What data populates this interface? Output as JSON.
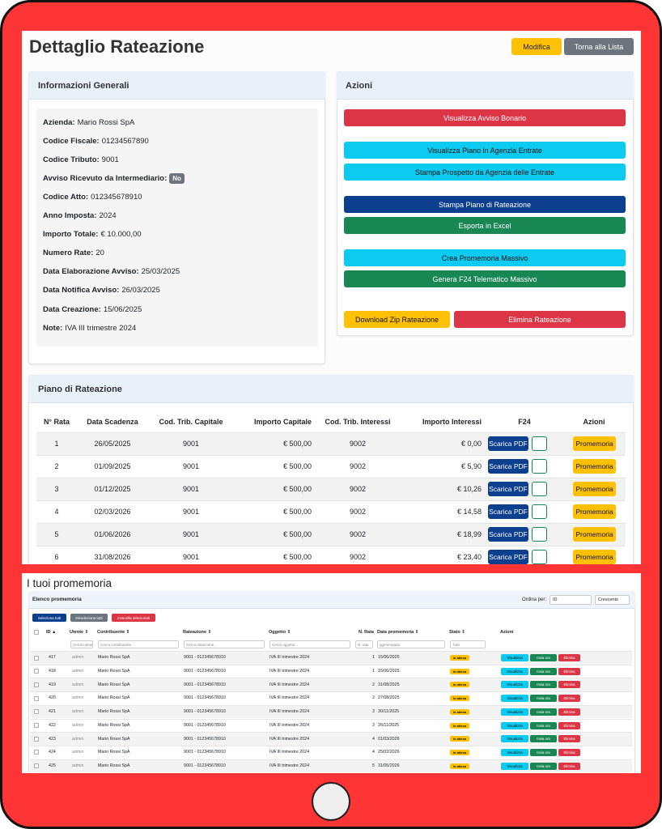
{
  "header": {
    "title": "Dettaglio Rateazione",
    "edit_button": "Modifica",
    "back_button": "Torna alla Lista"
  },
  "info": {
    "title": "Informazioni Generali",
    "fields": [
      {
        "label": "Azienda:",
        "value": "Mario Rossi SpA"
      },
      {
        "label": "Codice Fiscale:",
        "value": "01234567890"
      },
      {
        "label": "Codice Tributo:",
        "value": "9001"
      },
      {
        "label": "Avviso Ricevuto da Intermediario:",
        "badge": "No"
      },
      {
        "label": "Codice Atto:",
        "value": "012345678910"
      },
      {
        "label": "Anno Imposta:",
        "value": "2024"
      },
      {
        "label": "Importo Totale:",
        "value": "€ 10.000,00"
      },
      {
        "label": "Numero Rate:",
        "value": "20"
      },
      {
        "label": "Data Elaborazione Avviso:",
        "value": "25/03/2025"
      },
      {
        "label": "Data Notifica Avviso:",
        "value": "26/03/2025"
      },
      {
        "label": "Data Creazione:",
        "value": "15/06/2025"
      },
      {
        "label": "Note:",
        "value": "IVA III trimestre 2024"
      }
    ]
  },
  "actions": {
    "title": "Azioni",
    "buttons": [
      {
        "label": "Visualizza Avviso Bonario",
        "color": "#dc3545"
      },
      {
        "label": "Visualizza Piano in Agenzia Entrate",
        "color": "#0dcaf0"
      },
      {
        "label": "Stampa Prospetto da Agenzia delle Entrate",
        "color": "#0dcaf0"
      },
      {
        "label": "Stampa Piano di Rateazione",
        "color": "#0d3f8f"
      },
      {
        "label": "Esporta in Excel",
        "color": "#198754"
      },
      {
        "label": "Crea Promemoria Massivo",
        "color": "#0dcaf0"
      },
      {
        "label": "Genera F24 Telematico Massivo",
        "color": "#198754"
      },
      {
        "label": "Download Zip Rateazione",
        "color": "#ffc107"
      },
      {
        "label": "Elimina Rateazione",
        "color": "#dc3545"
      }
    ]
  },
  "plan": {
    "title": "Piano di Rateazione",
    "columns": [
      "N° Rata",
      "Data Scadenza",
      "Cod. Trib. Capitale",
      "Importo Capitale",
      "Cod. Trib. Interessi",
      "Importo Interessi",
      "F24",
      "Azioni"
    ],
    "pdf_button": "Scarica PDF",
    "reminder_button": "Promemoria",
    "rows": [
      [
        "1",
        "26/05/2025",
        "9001",
        "€ 500,00",
        "9002",
        "€ 0,00"
      ],
      [
        "2",
        "01/09/2025",
        "9001",
        "€ 500,00",
        "9002",
        "€ 5,90"
      ],
      [
        "3",
        "01/12/2025",
        "9001",
        "€ 500,00",
        "9002",
        "€ 10,26"
      ],
      [
        "4",
        "02/03/2026",
        "9001",
        "€ 500,00",
        "9002",
        "€ 14,58"
      ],
      [
        "5",
        "01/06/2026",
        "9001",
        "€ 500,00",
        "9002",
        "€ 18,99"
      ],
      [
        "6",
        "31/08/2026",
        "9001",
        "€ 500,00",
        "9002",
        "€ 23,40"
      ]
    ]
  },
  "reminders": {
    "title": "I tuoi promemoria",
    "card_title": "Elenco promemoria",
    "sort_label": "Ordina per:",
    "sort_field": "ID",
    "sort_order": "Crescente",
    "bulk_buttons": [
      "Seleziona tutti",
      "Deseleziona tutti",
      "Cancella selezionati"
    ],
    "columns": [
      "ID ▲",
      "Utente ⇕",
      "Contribuente ⇕",
      "Rateazione ⇕",
      "Oggetto ⇕",
      "N. Rata",
      "Data promemoria ⇕",
      "Stato ⇕",
      "Azioni"
    ],
    "filters": [
      "Cerca utente",
      "Cerca contribuente...",
      "Cerca rateazione...",
      "Cerca oggetto...",
      "N. rata",
      "gg/mm/aaaa",
      "Tutti"
    ],
    "action_buttons": [
      "Visualizza",
      "Invia ora",
      "Elimina"
    ],
    "rows": [
      [
        "417",
        "admin",
        "Mario Rossi SpA",
        "9001 - 012345678910",
        "IVA III trimestre 2024",
        "1",
        "15/06/2025",
        "In attesa"
      ],
      [
        "418",
        "admin",
        "Mario Rossi SpA",
        "9001 - 012345678910",
        "IVA III trimestre 2024",
        "1",
        "15/06/2025",
        "In attesa"
      ],
      [
        "419",
        "admin",
        "Mario Rossi SpA",
        "9001 - 012345678910",
        "IVA III trimestre 2024",
        "2",
        "31/08/2025",
        "In attesa"
      ],
      [
        "420",
        "admin",
        "Mario Rossi SpA",
        "9001 - 012345678910",
        "IVA III trimestre 2024",
        "2",
        "27/08/2025",
        "In attesa"
      ],
      [
        "421",
        "admin",
        "Mario Rossi SpA",
        "9001 - 012345678910",
        "IVA III trimestre 2024",
        "3",
        "30/11/2025",
        "In attesa"
      ],
      [
        "422",
        "admin",
        "Mario Rossi SpA",
        "9001 - 012345678910",
        "IVA III trimestre 2024",
        "3",
        "26/11/2025",
        "In attesa"
      ],
      [
        "423",
        "admin",
        "Mario Rossi SpA",
        "9001 - 012345678910",
        "IVA III trimestre 2024",
        "4",
        "01/03/2026",
        "In attesa"
      ],
      [
        "424",
        "admin",
        "Mario Rossi SpA",
        "9001 - 012345678910",
        "IVA III trimestre 2024",
        "4",
        "25/02/2026",
        "In attesa"
      ],
      [
        "425",
        "admin",
        "Mario Rossi SpA",
        "9001 - 012345678910",
        "IVA III trimestre 2024",
        "5",
        "31/05/2026",
        "In attesa"
      ]
    ]
  }
}
